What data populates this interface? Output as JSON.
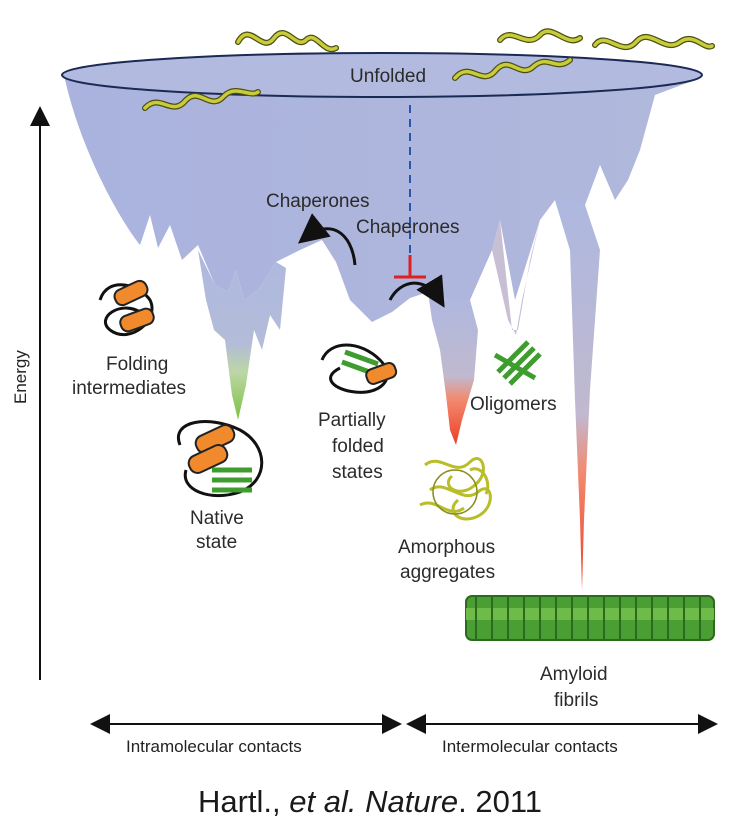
{
  "labels": {
    "unfolded": "Unfolded",
    "chaperones_left": "Chaperones",
    "chaperones_right": "Chaperones",
    "folding_intermediates": [
      "Folding",
      "intermediates"
    ],
    "native_state": [
      "Native",
      "state"
    ],
    "partially_folded": [
      "Partially",
      "folded",
      "states"
    ],
    "oligomers": "Oligomers",
    "amorphous_aggregates": [
      "Amorphous",
      "aggregates"
    ],
    "amyloid_fibrils": [
      "Amyloid",
      "fibrils"
    ]
  },
  "axes": {
    "y_label": "Energy",
    "x_left_label": "Intramolecular contacts",
    "x_right_label": "Intermolecular contacts"
  },
  "citation": {
    "authors": "Hartl.,",
    "etal": "et al.",
    "journal": "Nature",
    "year": "2011"
  },
  "colors": {
    "funnel_top": "#a9b4dc",
    "native_basin": "#8fc84f",
    "aggregation_basin": "#f0553a",
    "helix": "#f08a2c",
    "beta_strand": "#3f9c2f",
    "unfolded_chain": "#c8cc3a",
    "inhibition": "#e02020",
    "dashed_line": "#2b55a8"
  }
}
